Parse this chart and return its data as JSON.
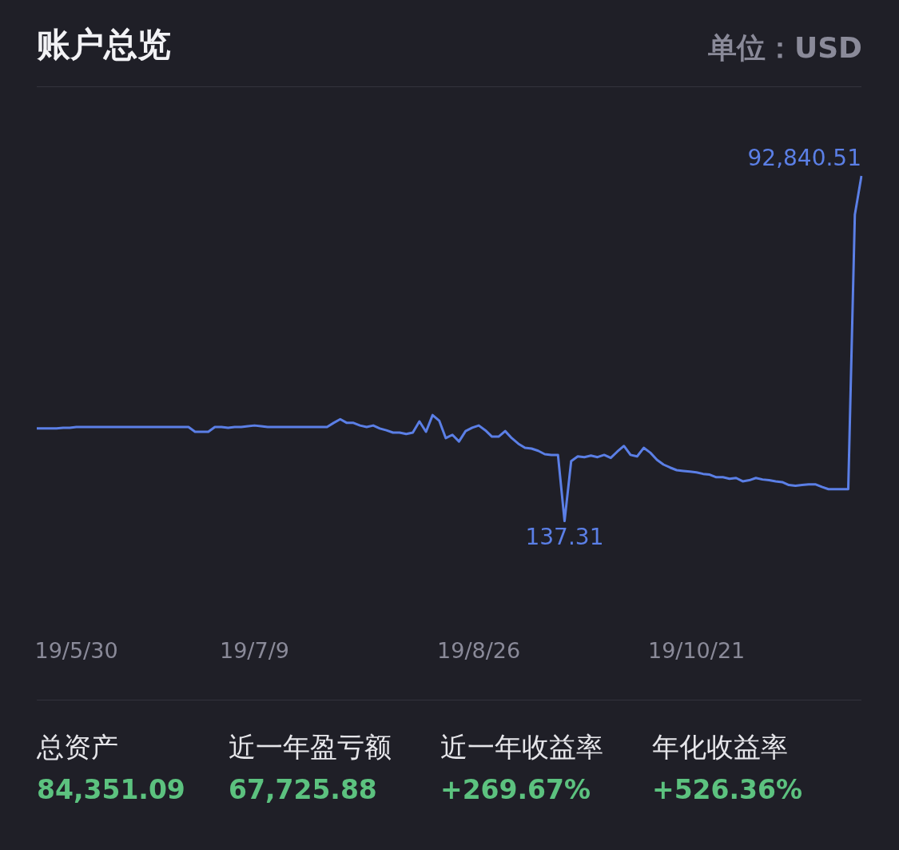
{
  "chart_data": {
    "type": "line",
    "title": "账户总览",
    "subtitle": "单位：USD",
    "marker": "none",
    "categories": [
      null,
      null,
      null,
      null,
      null,
      null,
      "19/5/30",
      null,
      null,
      null,
      null,
      null,
      null,
      null,
      null,
      null,
      null,
      null,
      null,
      null,
      null,
      null,
      null,
      null,
      null,
      null,
      null,
      null,
      null,
      null,
      null,
      null,
      null,
      "19/7/9",
      null,
      null,
      null,
      null,
      null,
      null,
      null,
      null,
      null,
      null,
      null,
      null,
      null,
      null,
      null,
      null,
      null,
      null,
      null,
      null,
      null,
      null,
      null,
      null,
      null,
      null,
      null,
      null,
      null,
      null,
      null,
      null,
      null,
      "19/8/26",
      null,
      null,
      null,
      null,
      null,
      null,
      null,
      null,
      null,
      null,
      null,
      null,
      null,
      null,
      null,
      null,
      null,
      null,
      null,
      null,
      null,
      null,
      null,
      null,
      null,
      null,
      null,
      null,
      null,
      null,
      null,
      null,
      "19/10/21",
      null,
      null,
      null,
      null,
      null,
      null,
      null,
      null,
      null,
      null,
      null,
      null,
      null,
      null,
      null,
      null,
      null,
      null,
      null,
      null,
      null,
      null,
      null,
      null,
      null
    ],
    "series": [
      {
        "color": "#5b7fe6",
        "values": [
          25000,
          25000,
          25000,
          25000,
          25200,
          25200,
          25400,
          25400,
          25400,
          25400,
          25400,
          25400,
          25400,
          25400,
          25400,
          25400,
          25400,
          25400,
          25400,
          25400,
          25400,
          25400,
          25400,
          25400,
          24100,
          24100,
          24100,
          25400,
          25400,
          25200,
          25400,
          25400,
          25600,
          25800,
          25600,
          25400,
          25400,
          25400,
          25400,
          25400,
          25400,
          25400,
          25400,
          25400,
          25400,
          26500,
          27500,
          26500,
          26500,
          25800,
          25400,
          25800,
          25000,
          24500,
          23900,
          23900,
          23500,
          23900,
          26900,
          24100,
          28600,
          27100,
          22400,
          23300,
          21500,
          24300,
          25200,
          25800,
          24500,
          22800,
          22800,
          24300,
          22400,
          20900,
          19800,
          19600,
          19000,
          18100,
          17900,
          17900,
          137.31,
          16200,
          17500,
          17300,
          17700,
          17300,
          17900,
          17100,
          18800,
          20300,
          17900,
          17500,
          19800,
          18500,
          16600,
          15300,
          14500,
          13800,
          13600,
          13400,
          13200,
          12800,
          12600,
          11900,
          11900,
          11500,
          11700,
          10800,
          11100,
          11700,
          11300,
          11100,
          10800,
          10600,
          9800,
          9600,
          9800,
          10000,
          10000,
          9300,
          8700,
          8700,
          8700,
          8700,
          82400,
          92840.51
        ],
        "value_labels": [
          null,
          null,
          null,
          null,
          null,
          null,
          null,
          null,
          null,
          null,
          null,
          null,
          null,
          null,
          null,
          null,
          null,
          null,
          null,
          null,
          null,
          null,
          null,
          null,
          null,
          null,
          null,
          null,
          null,
          null,
          null,
          null,
          null,
          null,
          null,
          null,
          null,
          null,
          null,
          null,
          null,
          null,
          null,
          null,
          null,
          null,
          null,
          null,
          null,
          null,
          null,
          null,
          null,
          null,
          null,
          null,
          null,
          null,
          null,
          null,
          null,
          null,
          null,
          null,
          null,
          null,
          null,
          null,
          null,
          null,
          null,
          null,
          null,
          null,
          null,
          null,
          null,
          null,
          null,
          null,
          "137.31",
          null,
          null,
          null,
          null,
          null,
          null,
          null,
          null,
          null,
          null,
          null,
          null,
          null,
          null,
          null,
          null,
          null,
          null,
          null,
          null,
          null,
          null,
          null,
          null,
          null,
          null,
          null,
          null,
          null,
          null,
          null,
          null,
          null,
          null,
          null,
          null,
          null,
          null,
          null,
          null,
          null,
          null,
          null,
          null,
          "92,840.51"
        ]
      }
    ],
    "annotations": [
      "总资产",
      "84,351.09",
      "近一年盈亏额",
      "67,725.88",
      "近一年收益率",
      "+269.67%",
      "年化收益率",
      "+526.36%"
    ]
  }
}
